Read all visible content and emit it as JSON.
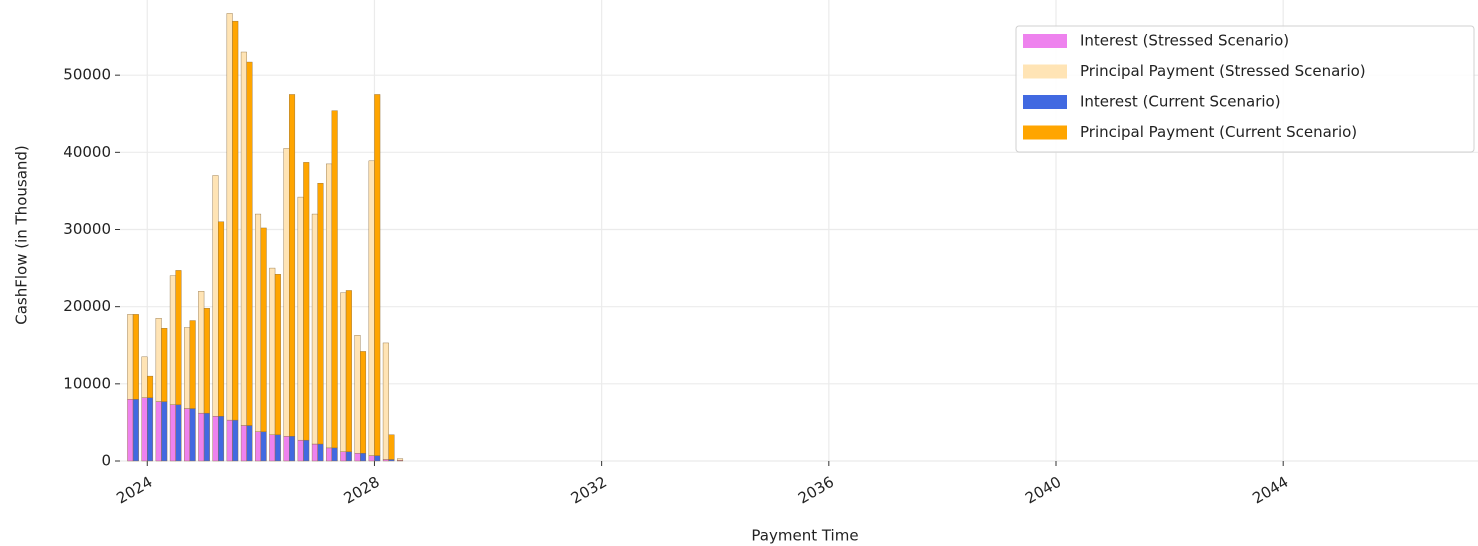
{
  "chart_data": {
    "type": "stacked_bar",
    "xlabel": "Payment Time",
    "ylabel": "CashFlow (in Thousand)",
    "x": [
      2023.75,
      2024.0,
      2024.25,
      2024.5,
      2024.75,
      2025.0,
      2025.25,
      2025.5,
      2025.75,
      2026.0,
      2026.25,
      2026.5,
      2026.75,
      2027.0,
      2027.25,
      2027.5,
      2027.75,
      2028.0,
      2028.25,
      2028.5
    ],
    "series": [
      {
        "name": "Interest (Stressed Scenario)",
        "color": "#ee82ee",
        "group": "stressed",
        "values": [
          8000,
          8200,
          7700,
          7300,
          6800,
          6200,
          5800,
          5300,
          4600,
          3800,
          3400,
          3200,
          2700,
          2200,
          1700,
          1200,
          1000,
          700,
          200,
          100
        ]
      },
      {
        "name": "Principal Payment (Stressed Scenario)",
        "color": "#ffe4b5",
        "group": "stressed",
        "values": [
          11000,
          5300,
          10800,
          16700,
          10500,
          15800,
          31200,
          52700,
          48400,
          28200,
          21600,
          37300,
          31500,
          29800,
          36800,
          20600,
          15300,
          38200,
          15100,
          200
        ]
      },
      {
        "name": "Interest (Current Scenario)",
        "color": "#4169e1",
        "group": "current",
        "values": [
          8000,
          8200,
          7700,
          7300,
          6800,
          6200,
          5800,
          5300,
          4600,
          3800,
          3400,
          3200,
          2700,
          2200,
          1700,
          1200,
          1000,
          700,
          200,
          0
        ]
      },
      {
        "name": "Principal Payment (Current Scenario)",
        "color": "#ffa500",
        "group": "current",
        "values": [
          11000,
          2800,
          9500,
          17400,
          11400,
          13600,
          25200,
          51700,
          47100,
          26400,
          20800,
          44300,
          36000,
          33800,
          43700,
          20900,
          13200,
          46800,
          3200,
          0
        ]
      }
    ],
    "xlim": [
      2023.52,
      2047.43
    ],
    "xticks": [
      2024,
      2028,
      2032,
      2036,
      2040,
      2044
    ],
    "ylim": [
      0,
      60000
    ],
    "yticks": [
      0,
      10000,
      20000,
      30000,
      40000,
      50000
    ],
    "grid": true,
    "legend": "upper right"
  }
}
